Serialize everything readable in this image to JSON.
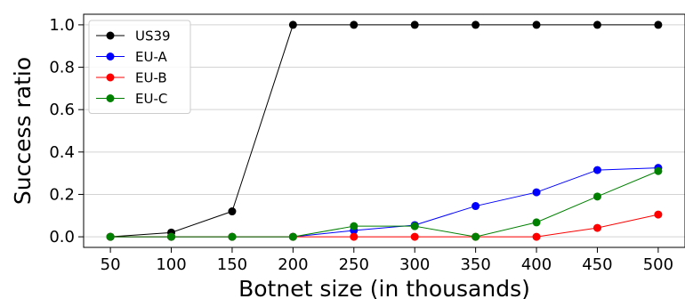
{
  "chart_data": {
    "type": "line",
    "title": "",
    "xlabel": "Botnet size (in thousands)",
    "ylabel": "Success ratio",
    "x": [
      50,
      100,
      150,
      200,
      250,
      300,
      350,
      400,
      450,
      500
    ],
    "xticks": [
      "50",
      "100",
      "150",
      "200",
      "250",
      "300",
      "350",
      "400",
      "450",
      "500"
    ],
    "yticks": [
      0.0,
      0.2,
      0.4,
      0.6,
      0.8,
      1.0
    ],
    "ytick_labels": [
      "0.0",
      "0.2",
      "0.4",
      "0.6",
      "0.8",
      "1.0"
    ],
    "xlim": [
      28,
      522
    ],
    "ylim": [
      -0.05,
      1.05
    ],
    "grid": "horizontal",
    "legend_position": "top-left",
    "series": [
      {
        "name": "US39",
        "color": "#000000",
        "values": [
          0.0,
          0.02,
          0.12,
          1.0,
          1.0,
          1.0,
          1.0,
          1.0,
          1.0,
          1.0
        ]
      },
      {
        "name": "EU-A",
        "color": "#0000ff",
        "values": [
          0.0,
          0.0,
          0.0,
          0.0,
          0.03,
          0.055,
          0.145,
          0.21,
          0.315,
          0.325
        ]
      },
      {
        "name": "EU-B",
        "color": "#ff0000",
        "values": [
          0.0,
          0.0,
          0.0,
          0.0,
          0.0,
          0.0,
          0.0,
          0.0,
          0.042,
          0.105
        ]
      },
      {
        "name": "EU-C",
        "color": "#008000",
        "values": [
          0.0,
          0.0,
          0.0,
          0.0,
          0.05,
          0.05,
          0.0,
          0.068,
          0.19,
          0.31
        ]
      }
    ]
  }
}
